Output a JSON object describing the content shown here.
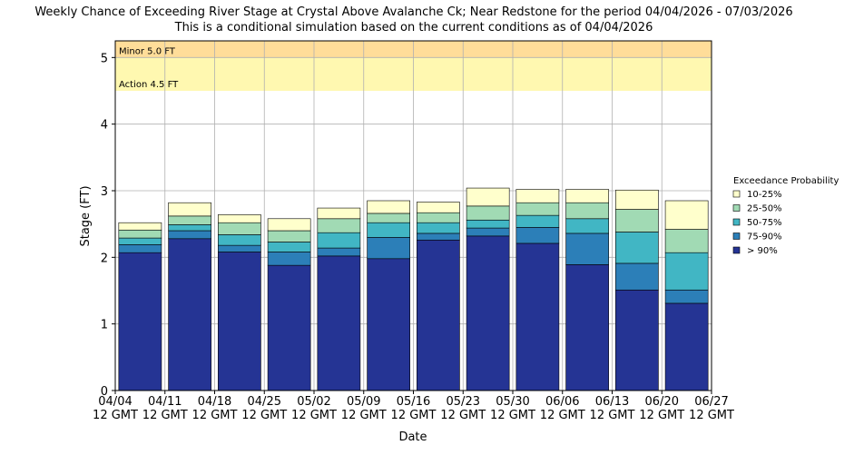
{
  "chart_data": {
    "type": "stacked_bar",
    "title": "Weekly Chance of Exceeding River Stage at Crystal Above Avalanche Ck; Near Redstone for the period 04/04/2026 - 07/03/2026",
    "subtitle": "This is a conditional simulation based on the current conditions as of 04/04/2026",
    "y_label": "Stage (FT)",
    "x_label": "Date",
    "xtick_labels": [
      {
        "date": "04/04",
        "time": "12 GMT"
      },
      {
        "date": "04/11",
        "time": "12 GMT"
      },
      {
        "date": "04/18",
        "time": "12 GMT"
      },
      {
        "date": "04/25",
        "time": "12 GMT"
      },
      {
        "date": "05/02",
        "time": "12 GMT"
      },
      {
        "date": "05/09",
        "time": "12 GMT"
      },
      {
        "date": "05/16",
        "time": "12 GMT"
      },
      {
        "date": "05/23",
        "time": "12 GMT"
      },
      {
        "date": "05/30",
        "time": "12 GMT"
      },
      {
        "date": "06/06",
        "time": "12 GMT"
      },
      {
        "date": "06/13",
        "time": "12 GMT"
      },
      {
        "date": "06/20",
        "time": "12 GMT"
      },
      {
        "date": "06/27",
        "time": "12 GMT"
      }
    ],
    "ylim": [
      0,
      5.25
    ],
    "yticks": [
      0,
      1,
      2,
      3,
      4,
      5
    ],
    "grid": true,
    "thresholds": [
      {
        "label": "Minor 5.0 FT",
        "value": 5.0,
        "color": "#ffdd99"
      },
      {
        "label": "Action 4.5 FT",
        "value": 4.5,
        "color": "#fff8b0"
      }
    ],
    "legend_title": "Exceedance Probability",
    "legend_position": "right",
    "series": [
      {
        "name": "> 90%",
        "color": "#253494",
        "values": [
          2.07,
          2.28,
          2.08,
          1.88,
          2.02,
          1.98,
          2.26,
          2.32,
          2.21,
          1.89,
          1.51,
          1.31
        ]
      },
      {
        "name": "75-90%",
        "color": "#2c7fb8",
        "values": [
          0.12,
          0.12,
          0.1,
          0.2,
          0.12,
          0.32,
          0.1,
          0.12,
          0.24,
          0.47,
          0.4,
          0.2
        ]
      },
      {
        "name": "50-75%",
        "color": "#41b6c4",
        "values": [
          0.1,
          0.09,
          0.16,
          0.15,
          0.23,
          0.22,
          0.16,
          0.12,
          0.18,
          0.22,
          0.47,
          0.56
        ]
      },
      {
        "name": "25-50%",
        "color": "#a1dab4",
        "values": [
          0.12,
          0.13,
          0.18,
          0.17,
          0.21,
          0.14,
          0.15,
          0.21,
          0.19,
          0.24,
          0.34,
          0.35
        ]
      },
      {
        "name": "10-25%",
        "color": "#ffffcc",
        "values": [
          0.11,
          0.2,
          0.12,
          0.18,
          0.16,
          0.19,
          0.16,
          0.27,
          0.2,
          0.2,
          0.29,
          0.43
        ]
      }
    ]
  }
}
